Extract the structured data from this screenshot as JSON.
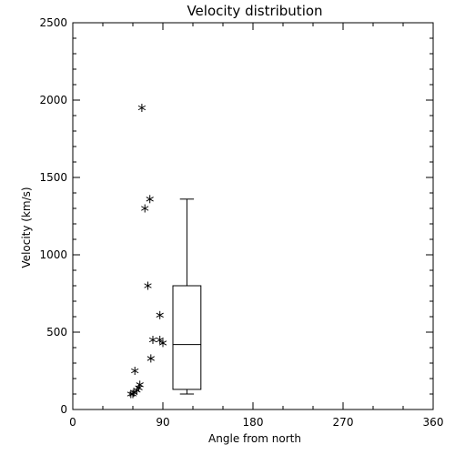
{
  "chart_data": {
    "type": "scatter",
    "title": "Velocity distribution",
    "xlabel": "Angle from north",
    "ylabel": "Velocity (km/s)",
    "xlim": [
      0,
      360
    ],
    "ylim": [
      0,
      2500
    ],
    "x_ticks": [
      0,
      90,
      180,
      270,
      360
    ],
    "y_ticks": [
      0,
      500,
      1000,
      1500,
      2000,
      2500
    ],
    "grid": false,
    "marker": "asterisk",
    "points": [
      {
        "x": 69,
        "y": 1950
      },
      {
        "x": 77,
        "y": 1360
      },
      {
        "x": 72,
        "y": 1300
      },
      {
        "x": 75,
        "y": 800
      },
      {
        "x": 87,
        "y": 610
      },
      {
        "x": 80,
        "y": 450
      },
      {
        "x": 87,
        "y": 450
      },
      {
        "x": 90,
        "y": 430
      },
      {
        "x": 78,
        "y": 330
      },
      {
        "x": 62,
        "y": 250
      },
      {
        "x": 67,
        "y": 160
      },
      {
        "x": 66,
        "y": 140
      },
      {
        "x": 64,
        "y": 125
      },
      {
        "x": 61,
        "y": 110
      },
      {
        "x": 58,
        "y": 100
      },
      {
        "x": 60,
        "y": 100
      }
    ],
    "boxplot": {
      "x_center": 114,
      "half_width": 14,
      "whisker_low": 100,
      "q1": 130,
      "median": 420,
      "q3": 800,
      "whisker_high": 1360,
      "cap_half_width": 7
    }
  }
}
